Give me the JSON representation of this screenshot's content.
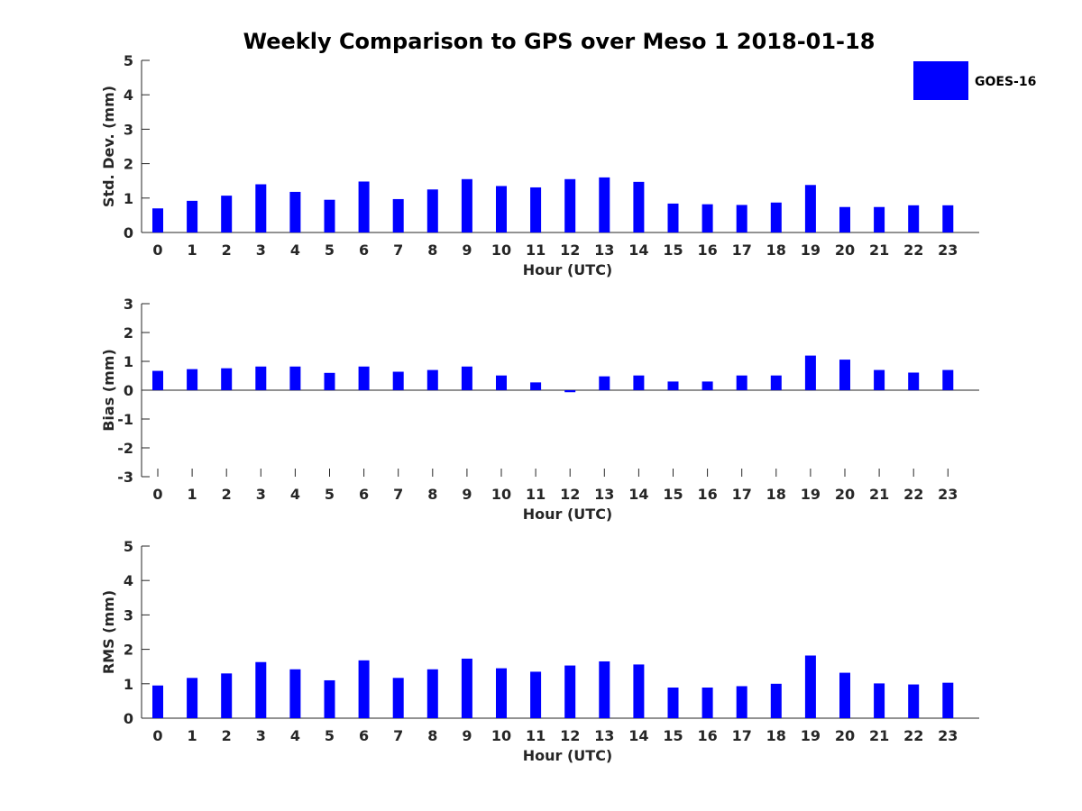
{
  "title": "Weekly Comparison to GPS over Meso 1 2018-01-18",
  "legend": {
    "label": "GOES-16",
    "color": "#0000ff",
    "placement": "top-right"
  },
  "chart_data": [
    {
      "type": "bar",
      "name": "std",
      "ylabel": "Std. Dev. (mm)",
      "xlabel": "Hour (UTC)",
      "categories": [
        "0",
        "1",
        "2",
        "3",
        "4",
        "5",
        "6",
        "7",
        "8",
        "9",
        "10",
        "11",
        "12",
        "13",
        "14",
        "15",
        "16",
        "17",
        "18",
        "19",
        "20",
        "21",
        "22",
        "23"
      ],
      "ylim": [
        0,
        5
      ],
      "yticks": [
        0,
        1,
        2,
        3,
        4,
        5
      ],
      "series": [
        {
          "name": "GOES-16",
          "values": [
            0.7,
            0.92,
            1.07,
            1.4,
            1.18,
            0.95,
            1.48,
            0.97,
            1.25,
            1.55,
            1.35,
            1.31,
            1.55,
            1.6,
            1.47,
            0.84,
            0.82,
            0.8,
            0.87,
            1.38,
            0.74,
            0.74,
            0.79,
            0.79
          ]
        }
      ]
    },
    {
      "type": "bar",
      "name": "bias",
      "ylabel": "Bias (mm)",
      "xlabel": "Hour (UTC)",
      "categories": [
        "0",
        "1",
        "2",
        "3",
        "4",
        "5",
        "6",
        "7",
        "8",
        "9",
        "10",
        "11",
        "12",
        "13",
        "14",
        "15",
        "16",
        "17",
        "18",
        "19",
        "20",
        "21",
        "22",
        "23"
      ],
      "ylim": [
        -3,
        3
      ],
      "yticks": [
        -3,
        -2,
        -1,
        0,
        1,
        2,
        3
      ],
      "series": [
        {
          "name": "GOES-16",
          "values": [
            0.67,
            0.73,
            0.76,
            0.82,
            0.82,
            0.6,
            0.82,
            0.64,
            0.7,
            0.82,
            0.51,
            0.27,
            -0.07,
            0.48,
            0.51,
            0.3,
            0.3,
            0.51,
            0.51,
            1.2,
            1.06,
            0.7,
            0.61,
            0.7
          ]
        }
      ]
    },
    {
      "type": "bar",
      "name": "rms",
      "ylabel": "RMS (mm)",
      "xlabel": "Hour (UTC)",
      "categories": [
        "0",
        "1",
        "2",
        "3",
        "4",
        "5",
        "6",
        "7",
        "8",
        "9",
        "10",
        "11",
        "12",
        "13",
        "14",
        "15",
        "16",
        "17",
        "18",
        "19",
        "20",
        "21",
        "22",
        "23"
      ],
      "ylim": [
        0,
        5
      ],
      "yticks": [
        0,
        1,
        2,
        3,
        4,
        5
      ],
      "series": [
        {
          "name": "GOES-16",
          "values": [
            0.95,
            1.17,
            1.3,
            1.63,
            1.42,
            1.1,
            1.68,
            1.17,
            1.42,
            1.73,
            1.45,
            1.35,
            1.53,
            1.65,
            1.56,
            0.89,
            0.89,
            0.93,
            1.0,
            1.82,
            1.32,
            1.01,
            0.98,
            1.03
          ]
        }
      ]
    }
  ]
}
